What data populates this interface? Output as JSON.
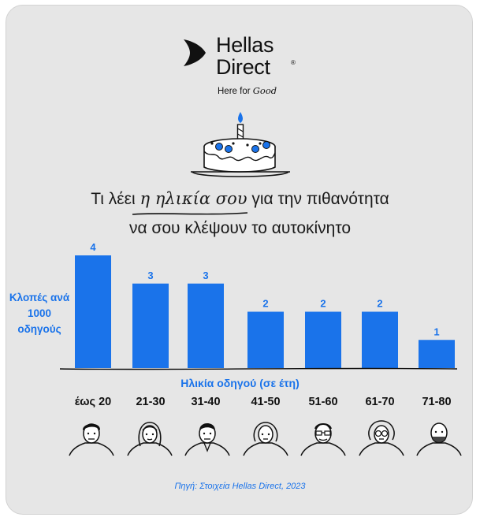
{
  "brand": {
    "name_line1": "Hellas",
    "name_line2": "Direct",
    "registered": "®",
    "tagline_prefix": "Here for",
    "tagline_accent": "Good"
  },
  "headline": {
    "line1_before": "Τι λέει",
    "line1_highlight": "η ηλικία σου",
    "line1_after": "για την πιθανότητα",
    "line2": "να σου κλέψουν το αυτοκίνητο"
  },
  "source": "Πηγή: Στοιχεία Hellas Direct, 2023",
  "colors": {
    "bar": "#1a73ea",
    "value_label": "#1a73ea",
    "axis_label": "#1a73ea",
    "background": "#e6e6e6"
  },
  "chart_data": {
    "type": "bar",
    "ylabel": "Κλοπές ανά 1000 οδηγούς",
    "xlabel": "Ηλικία οδηγού (σε έτη)",
    "categories": [
      "έως 20",
      "21-30",
      "31-40",
      "41-50",
      "51-60",
      "61-70",
      "71-80"
    ],
    "values": [
      4,
      3,
      3,
      2,
      2,
      2,
      1
    ],
    "ylim": [
      0,
      4
    ],
    "grid": false,
    "legend": "none"
  },
  "icons": [
    "cake-icon",
    "young-man-icon",
    "woman-icon",
    "man-icon",
    "woman-icon",
    "older-man-glasses-icon",
    "older-woman-glasses-icon",
    "bald-man-icon"
  ]
}
